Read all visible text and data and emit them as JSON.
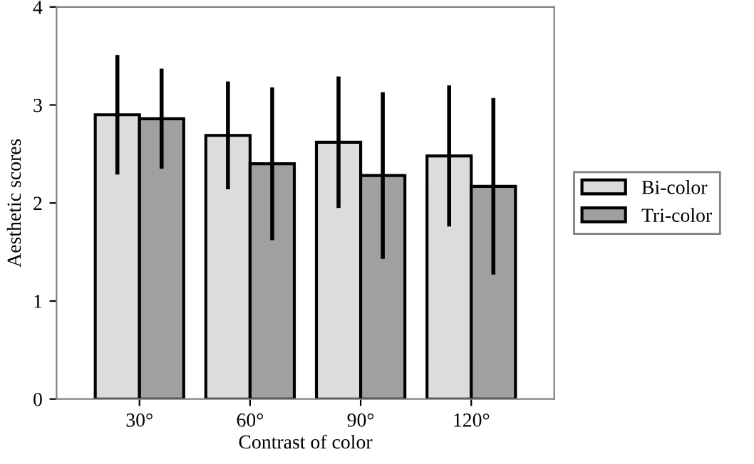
{
  "chart_data": {
    "type": "bar",
    "xlabel": "Contrast of color",
    "ylabel": "Aesthetic scores",
    "categories": [
      "30°",
      "60°",
      "90°",
      "120°"
    ],
    "series": [
      {
        "name": "Bi-color",
        "color": "#dcdcdc",
        "values": [
          2.9,
          2.69,
          2.62,
          2.48
        ],
        "errors": [
          0.61,
          0.55,
          0.67,
          0.72
        ]
      },
      {
        "name": "Tri-color",
        "color": "#a0a0a0",
        "values": [
          2.86,
          2.4,
          2.28,
          2.17
        ],
        "errors": [
          0.51,
          0.78,
          0.85,
          0.9
        ]
      }
    ],
    "ylim": [
      0,
      4
    ],
    "yticks": [
      0,
      1,
      2,
      3,
      4
    ],
    "legend": "right",
    "grid": false
  }
}
